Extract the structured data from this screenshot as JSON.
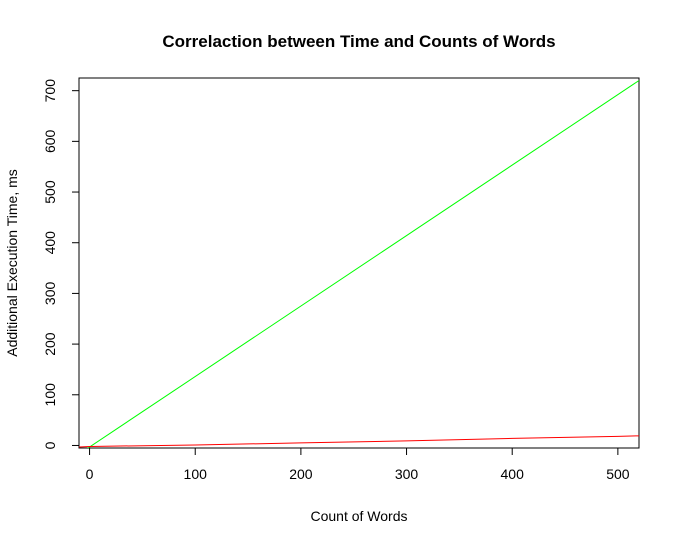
{
  "chart_data": {
    "type": "line",
    "title": "Correlaction between Time and Counts of Words",
    "xlabel": "Count of Words",
    "ylabel": "Additional Execution Time, ms",
    "xlim": [
      -10,
      520
    ],
    "ylim": [
      -5,
      725
    ],
    "xticks": [
      0,
      100,
      200,
      300,
      400,
      500
    ],
    "yticks": [
      0,
      100,
      200,
      300,
      400,
      500,
      600,
      700
    ],
    "grid": false,
    "series": [
      {
        "color": "#00ff00",
        "x": [
          -5,
          520
        ],
        "y": [
          -10,
          720
        ]
      },
      {
        "color": "#ff0000",
        "x": [
          -10,
          0,
          100,
          200,
          300,
          400,
          500,
          520
        ],
        "y": [
          -3,
          -2,
          1,
          5,
          9,
          14,
          18,
          19
        ]
      }
    ]
  }
}
